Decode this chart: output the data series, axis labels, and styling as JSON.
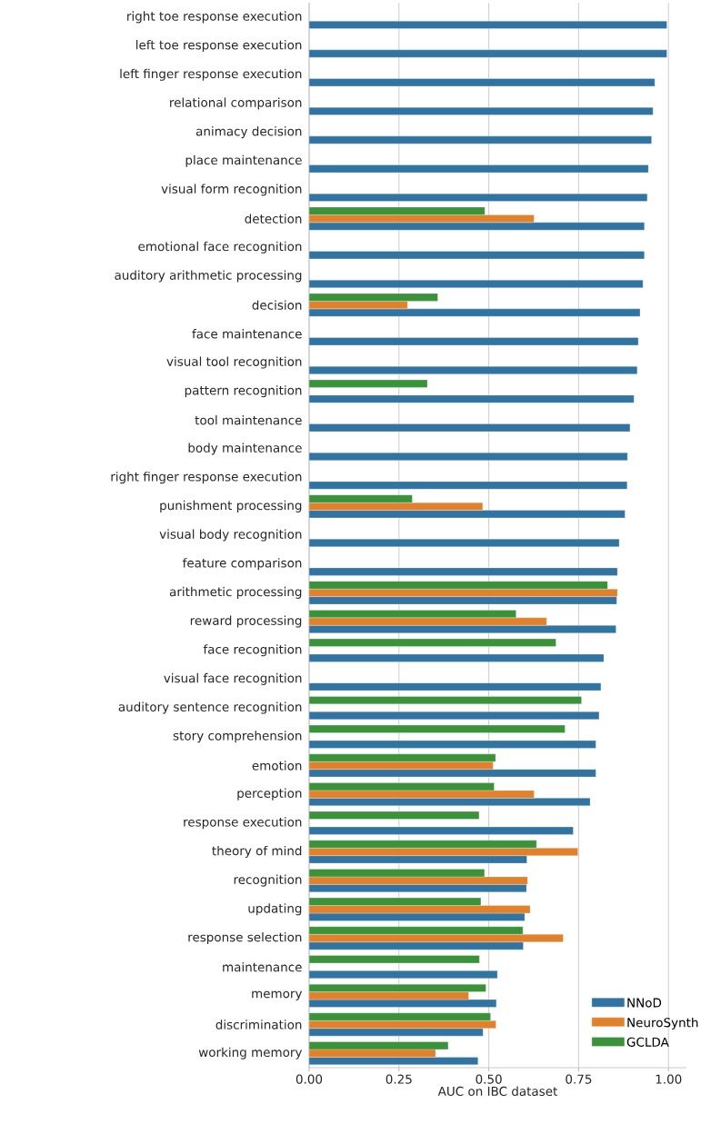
{
  "chart_data": {
    "type": "bar",
    "orientation": "horizontal",
    "xlabel": "AUC on IBC dataset",
    "categories": [
      "right toe response execution",
      "left toe response execution",
      "left finger response execution",
      "relational comparison",
      "animacy decision",
      "place maintenance",
      "visual form recognition",
      "detection",
      "emotional face recognition",
      "auditory arithmetic processing",
      "decision",
      "face maintenance",
      "visual tool recognition",
      "pattern recognition",
      "tool maintenance",
      "body maintenance",
      "right finger response execution",
      "punishment processing",
      "visual body recognition",
      "feature comparison",
      "arithmetic processing",
      "reward processing",
      "face recognition",
      "visual face recognition",
      "auditory sentence recognition",
      "story comprehension",
      "emotion",
      "perception",
      "response execution",
      "theory of mind",
      "recognition",
      "updating",
      "response selection",
      "maintenance",
      "memory",
      "discrimination",
      "working memory"
    ],
    "series": [
      {
        "name": "NNoD",
        "color": "#3274a1",
        "values": [
          0.996,
          0.996,
          0.962,
          0.957,
          0.953,
          0.944,
          0.941,
          0.933,
          0.933,
          0.929,
          0.921,
          0.916,
          0.913,
          0.904,
          0.893,
          0.886,
          0.885,
          0.879,
          0.863,
          0.858,
          0.856,
          0.854,
          0.82,
          0.812,
          0.807,
          0.798,
          0.798,
          0.782,
          0.735,
          0.606,
          0.605,
          0.6,
          0.596,
          0.524,
          0.521,
          0.484,
          0.47
        ]
      },
      {
        "name": "NeuroSynth",
        "color": "#e1812c",
        "values": [
          null,
          null,
          null,
          null,
          null,
          null,
          null,
          0.626,
          null,
          null,
          0.274,
          null,
          null,
          null,
          null,
          null,
          null,
          0.483,
          null,
          null,
          0.858,
          0.661,
          null,
          null,
          null,
          null,
          0.512,
          0.626,
          null,
          0.748,
          0.608,
          0.615,
          0.707,
          null,
          0.444,
          0.52,
          0.352
        ]
      },
      {
        "name": "GCLDA",
        "color": "#3a923a",
        "values": [
          null,
          null,
          null,
          null,
          null,
          null,
          null,
          0.489,
          null,
          null,
          0.358,
          null,
          null,
          0.329,
          null,
          null,
          null,
          0.287,
          null,
          null,
          0.831,
          0.576,
          0.687,
          null,
          0.758,
          0.712,
          0.519,
          0.515,
          0.473,
          0.633,
          0.488,
          0.478,
          0.595,
          0.474,
          0.492,
          0.505,
          0.387
        ]
      }
    ],
    "xlim": [
      0,
      1.05
    ],
    "xticks": [
      {
        "value": 0,
        "label": "0.00"
      },
      {
        "value": 0.25,
        "label": "0.25"
      },
      {
        "value": 0.5,
        "label": "0.50"
      },
      {
        "value": 0.75,
        "label": "0.75"
      },
      {
        "value": 1,
        "label": "1.00"
      }
    ],
    "grid": "x",
    "legend": "bottom right"
  }
}
